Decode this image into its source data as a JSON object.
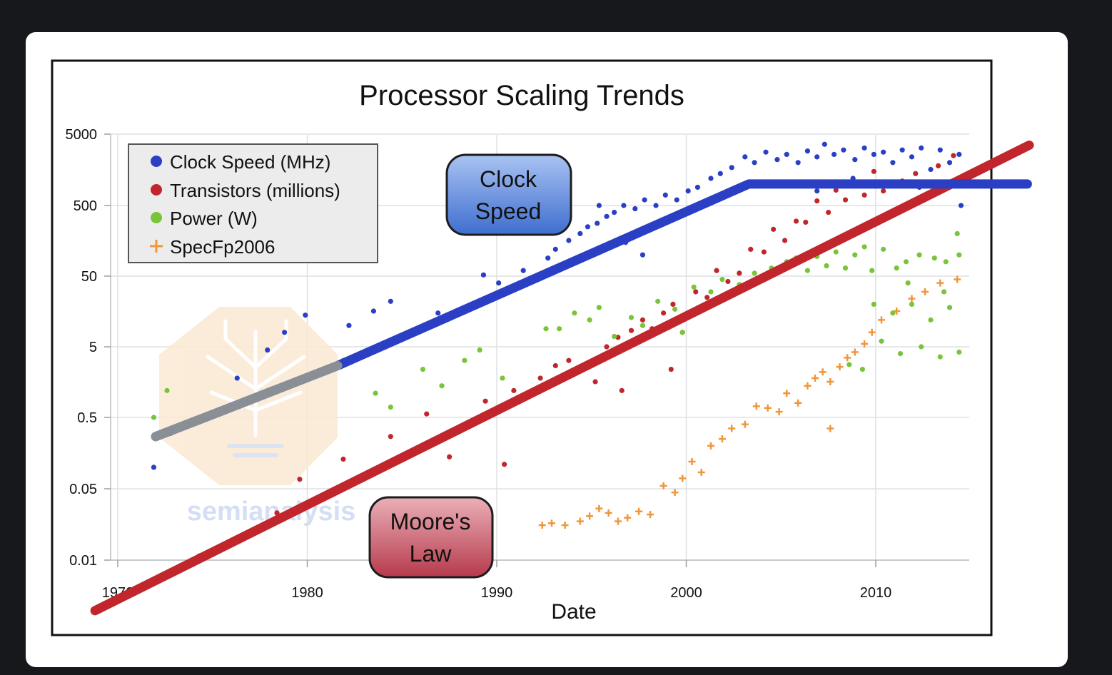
{
  "colors": {
    "page_bg": "#16181b",
    "card_bg": "#ffffff",
    "clock": "#2a3fc4",
    "transistors": "#c0262b",
    "power": "#7ac43a",
    "specfp": "#f0963a",
    "trend_gray": "#8a8f96",
    "clock_bubble": "#4f7fd8",
    "moore_bubble": "#c24e5c"
  },
  "chart_data": {
    "type": "scatter",
    "title": "Processor Scaling Trends",
    "xlabel": "Date",
    "ylabel": "",
    "y_scale": "log",
    "xlim": [
      1970,
      2015
    ],
    "ylim": [
      0.01,
      5000
    ],
    "x_ticks": [
      "1970",
      "1980",
      "1990",
      "2000",
      "2010"
    ],
    "y_ticks": [
      "5000",
      "500",
      "50",
      "5",
      "0.5",
      "0.05",
      "0.01"
    ],
    "grid": true,
    "legend_position": "top-left",
    "legend": [
      "Clock Speed (MHz)",
      "Transistors (millions)",
      "Power (W)",
      "SpecFp2006"
    ],
    "annotations": {
      "clock_bubble": {
        "line1": "Clock",
        "line2": "Speed"
      },
      "moore_bubble": {
        "line1": "Moore's",
        "line2": "Law"
      }
    },
    "watermark": "semianalysis",
    "trend_lines": {
      "moores_law": {
        "x": [
          1968.8,
          2018.1
        ],
        "y": [
          0.0032,
          3500
        ]
      },
      "clock_speed": [
        [
          1972,
          0.27
        ],
        [
          1975,
          0.55
        ],
        [
          1981.6,
          2.7
        ],
        [
          2003.3,
          1000
        ],
        [
          2018,
          1000
        ]
      ],
      "clock_speed_gray_segment": [
        1972,
        1981.6
      ]
    },
    "series": [
      {
        "name": "Clock Speed (MHz)",
        "marker": "circle",
        "points": [
          [
            1971.9,
            0.1
          ],
          [
            1972.8,
            0.3
          ],
          [
            1976.3,
            1.8
          ],
          [
            1977.9,
            4.5
          ],
          [
            1978.8,
            8
          ],
          [
            1979.9,
            14
          ],
          [
            1982.2,
            10
          ],
          [
            1983.5,
            16
          ],
          [
            1984.4,
            22
          ],
          [
            1986.9,
            15
          ],
          [
            1989.3,
            52
          ],
          [
            1990.1,
            40
          ],
          [
            1991.4,
            60
          ],
          [
            1992.7,
            90
          ],
          [
            1993.1,
            120
          ],
          [
            1993.8,
            160
          ],
          [
            1994.4,
            200
          ],
          [
            1994.8,
            250
          ],
          [
            1995.3,
            280
          ],
          [
            1995.8,
            350
          ],
          [
            1996.2,
            400
          ],
          [
            1996.7,
            500
          ],
          [
            1997.3,
            450
          ],
          [
            1997.8,
            600
          ],
          [
            1998.4,
            500
          ],
          [
            1998.9,
            700
          ],
          [
            1999.5,
            600
          ],
          [
            2000.1,
            800
          ],
          [
            2000.6,
            900
          ],
          [
            2001.3,
            1200
          ],
          [
            2001.8,
            1400
          ],
          [
            2002.4,
            1700
          ],
          [
            2003.1,
            2400
          ],
          [
            2003.6,
            2000
          ],
          [
            2004.2,
            2800
          ],
          [
            2004.8,
            2200
          ],
          [
            2005.3,
            2600
          ],
          [
            2005.9,
            2000
          ],
          [
            2006.4,
            2900
          ],
          [
            2006.9,
            2400
          ],
          [
            2007.3,
            3600
          ],
          [
            2007.8,
            2600
          ],
          [
            2008.3,
            3000
          ],
          [
            2008.9,
            2200
          ],
          [
            2009.4,
            3200
          ],
          [
            2009.9,
            2600
          ],
          [
            2010.4,
            2800
          ],
          [
            2010.9,
            2000
          ],
          [
            2011.4,
            3000
          ],
          [
            2011.9,
            2400
          ],
          [
            2012.4,
            3200
          ],
          [
            2012.9,
            1600
          ],
          [
            2013.4,
            3000
          ],
          [
            2013.9,
            2000
          ],
          [
            2014.4,
            2600
          ],
          [
            1995.4,
            500
          ],
          [
            1996.8,
            150
          ],
          [
            1994.6,
            100
          ],
          [
            1997.7,
            100
          ],
          [
            2006.9,
            800
          ],
          [
            2008.8,
            1200
          ],
          [
            2012.3,
            900
          ],
          [
            2014.5,
            500
          ]
        ]
      },
      {
        "name": "Transistors (millions)",
        "marker": "circle",
        "points": [
          [
            1974.3,
            0.011
          ],
          [
            1978.4,
            0.029
          ],
          [
            1979.6,
            0.068
          ],
          [
            1981.9,
            0.13
          ],
          [
            1984.4,
            0.27
          ],
          [
            1986.3,
            0.56
          ],
          [
            1987.5,
            0.14
          ],
          [
            1990.4,
            0.11
          ],
          [
            1989.4,
            0.85
          ],
          [
            1990.9,
            1.2
          ],
          [
            1992.3,
            1.8
          ],
          [
            1993.1,
            2.7
          ],
          [
            1993.8,
            3.2
          ],
          [
            1994.4,
            2.4
          ],
          [
            1995.2,
            1.6
          ],
          [
            1995.8,
            5
          ],
          [
            1996.4,
            6.8
          ],
          [
            1997.1,
            8.5
          ],
          [
            1997.7,
            12
          ],
          [
            1998.2,
            9
          ],
          [
            1998.8,
            15
          ],
          [
            1999.3,
            20
          ],
          [
            1999.8,
            8
          ],
          [
            2000.5,
            30
          ],
          [
            2001.1,
            25
          ],
          [
            2001.6,
            60
          ],
          [
            2002.2,
            42
          ],
          [
            2002.8,
            55
          ],
          [
            2003.4,
            120
          ],
          [
            2004.1,
            110
          ],
          [
            2004.6,
            230
          ],
          [
            2005.2,
            160
          ],
          [
            2005.8,
            300
          ],
          [
            2006.3,
            290
          ],
          [
            2006.9,
            580
          ],
          [
            2007.5,
            400
          ],
          [
            2007.9,
            820
          ],
          [
            2008.4,
            600
          ],
          [
            2008.9,
            1000
          ],
          [
            2009.4,
            700
          ],
          [
            2009.9,
            1500
          ],
          [
            2010.4,
            800
          ],
          [
            2011.4,
            1100
          ],
          [
            2012.1,
            1400
          ],
          [
            2013.3,
            1800
          ],
          [
            2014.1,
            2500
          ],
          [
            1999.2,
            2.4
          ],
          [
            1996.6,
            1.2
          ]
        ]
      },
      {
        "name": "Power (W)",
        "marker": "circle",
        "points": [
          [
            1971.9,
            0.5
          ],
          [
            1972.6,
            1.2
          ],
          [
            1978.9,
            1.4
          ],
          [
            1981.9,
            3.2
          ],
          [
            1983.6,
            1.1
          ],
          [
            1984.4,
            0.7
          ],
          [
            1986.1,
            2.4
          ],
          [
            1987.1,
            1.4
          ],
          [
            1988.3,
            3.2
          ],
          [
            1989.1,
            4.5
          ],
          [
            1990.3,
            1.8
          ],
          [
            1992.6,
            9
          ],
          [
            1993.3,
            9
          ],
          [
            1994.1,
            15
          ],
          [
            1994.9,
            12
          ],
          [
            1995.4,
            18
          ],
          [
            1996.2,
            7
          ],
          [
            1997.1,
            13
          ],
          [
            1997.7,
            10
          ],
          [
            1998.5,
            22
          ],
          [
            1999.4,
            17
          ],
          [
            1999.8,
            8
          ],
          [
            2000.4,
            35
          ],
          [
            2001.3,
            30
          ],
          [
            2001.9,
            45
          ],
          [
            2002.8,
            38
          ],
          [
            2003.6,
            55
          ],
          [
            2004.5,
            65
          ],
          [
            2005.3,
            80
          ],
          [
            2005.8,
            90
          ],
          [
            2006.4,
            60
          ],
          [
            2006.9,
            95
          ],
          [
            2007.4,
            70
          ],
          [
            2007.9,
            110
          ],
          [
            2008.4,
            65
          ],
          [
            2008.9,
            100
          ],
          [
            2009.4,
            130
          ],
          [
            2009.8,
            60
          ],
          [
            2010.4,
            120
          ],
          [
            2011.1,
            65
          ],
          [
            2011.6,
            80
          ],
          [
            2012.3,
            100
          ],
          [
            2013.1,
            90
          ],
          [
            2013.7,
            80
          ],
          [
            2014.4,
            100
          ],
          [
            2009.9,
            20
          ],
          [
            2010.9,
            15
          ],
          [
            2011.9,
            20
          ],
          [
            2012.9,
            12
          ],
          [
            2013.9,
            18
          ],
          [
            2014.4,
            4.2
          ],
          [
            2010.3,
            6
          ],
          [
            2011.3,
            4
          ],
          [
            2012.4,
            5
          ],
          [
            2013.4,
            3.6
          ],
          [
            2008.6,
            2.8
          ],
          [
            2009.3,
            2.4
          ],
          [
            2011.7,
            40
          ],
          [
            2013.6,
            30
          ],
          [
            2014.3,
            200
          ]
        ]
      },
      {
        "name": "SpecFp2006",
        "marker": "plus",
        "points": [
          [
            1992.4,
            0.022
          ],
          [
            1992.9,
            0.023
          ],
          [
            1993.6,
            0.022
          ],
          [
            1994.4,
            0.024
          ],
          [
            1994.9,
            0.027
          ],
          [
            1995.4,
            0.032
          ],
          [
            1995.9,
            0.029
          ],
          [
            1996.4,
            0.024
          ],
          [
            1996.9,
            0.026
          ],
          [
            1997.5,
            0.03
          ],
          [
            1998.1,
            0.028
          ],
          [
            1998.8,
            0.055
          ],
          [
            1999.4,
            0.046
          ],
          [
            1999.8,
            0.07
          ],
          [
            2000.3,
            0.12
          ],
          [
            2000.8,
            0.085
          ],
          [
            2001.3,
            0.2
          ],
          [
            2001.9,
            0.25
          ],
          [
            2002.4,
            0.35
          ],
          [
            2003.1,
            0.4
          ],
          [
            2003.7,
            0.72
          ],
          [
            2004.3,
            0.68
          ],
          [
            2004.9,
            0.6
          ],
          [
            2005.3,
            1.1
          ],
          [
            2005.9,
            0.8
          ],
          [
            2006.4,
            1.4
          ],
          [
            2006.8,
            1.8
          ],
          [
            2007.2,
            2.2
          ],
          [
            2007.6,
            1.6
          ],
          [
            2008.1,
            2.6
          ],
          [
            2008.5,
            3.5
          ],
          [
            2008.9,
            4.2
          ],
          [
            2009.4,
            5.5
          ],
          [
            2009.8,
            8
          ],
          [
            2010.3,
            12
          ],
          [
            2011.1,
            16
          ],
          [
            2011.9,
            24
          ],
          [
            2012.6,
            30
          ],
          [
            2013.4,
            40
          ],
          [
            2014.3,
            45
          ],
          [
            2007.6,
            0.35
          ]
        ]
      }
    ]
  }
}
